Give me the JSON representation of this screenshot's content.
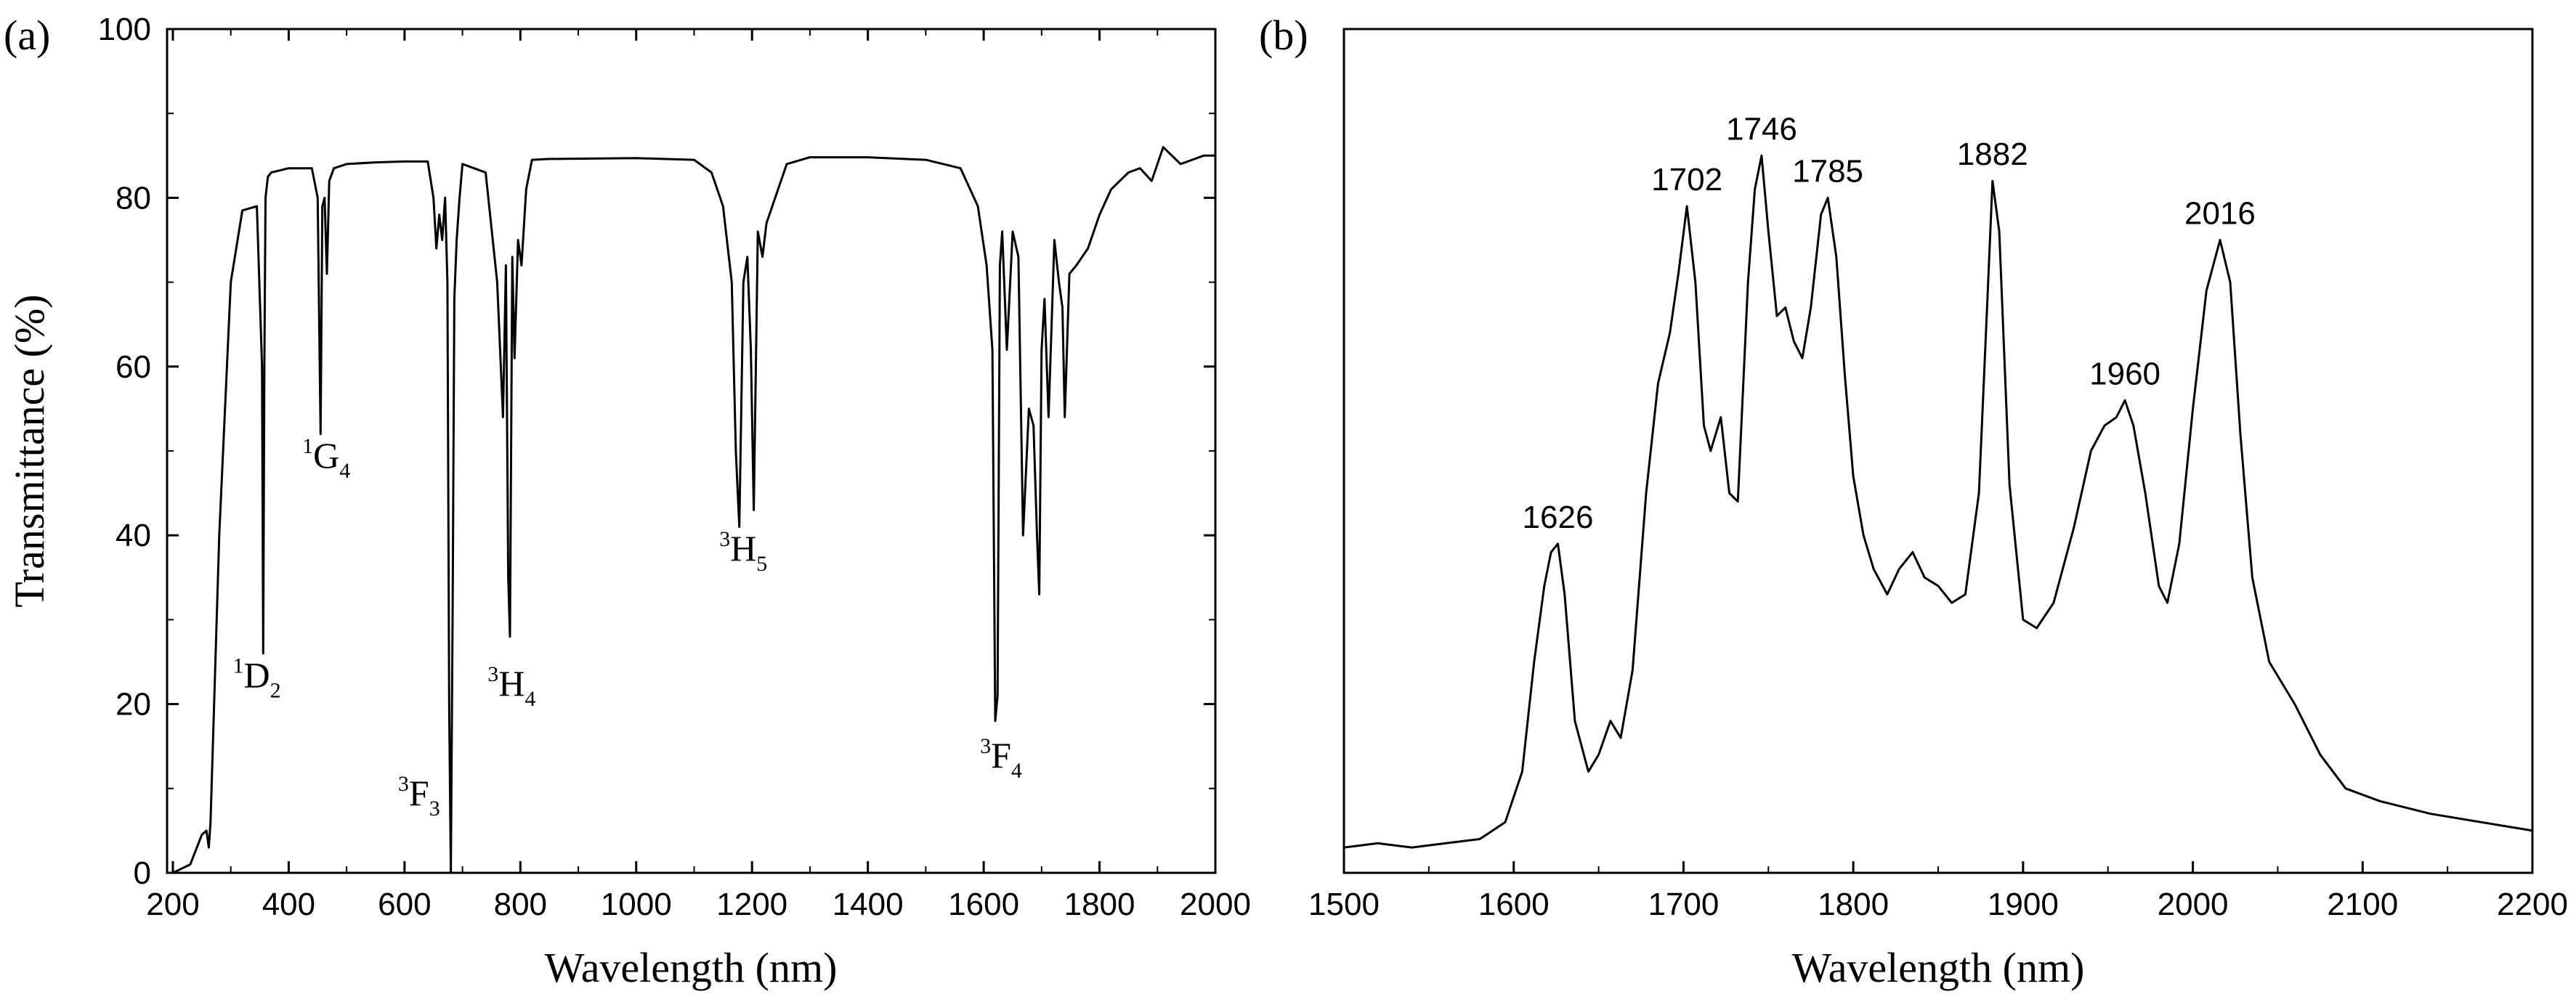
{
  "chart_data": [
    {
      "panel_label": "(a)",
      "type": "line",
      "xlabel": "Wavelength (nm)",
      "ylabel": "Transmittance (%)",
      "xlim": [
        190,
        2000
      ],
      "ylim": [
        0,
        100
      ],
      "x_ticks": [
        200,
        400,
        600,
        800,
        1000,
        1200,
        1400,
        1600,
        1800,
        2000
      ],
      "y_ticks": [
        0,
        20,
        40,
        60,
        80,
        100
      ],
      "grid": false,
      "series": [
        {
          "x": [
            200,
            230,
            250,
            258,
            262,
            265,
            280,
            300,
            320,
            345,
            354,
            356,
            358,
            360,
            364,
            370,
            400,
            440,
            450,
            455,
            458,
            462,
            466,
            470,
            478,
            500,
            550,
            600,
            640,
            650,
            655,
            660,
            665,
            670,
            674,
            677,
            680,
            683,
            686,
            690,
            695,
            700,
            720,
            740,
            760,
            770,
            775,
            779,
            782,
            786,
            790,
            796,
            802,
            810,
            820,
            850,
            1000,
            1100,
            1130,
            1150,
            1165,
            1172,
            1178,
            1185,
            1192,
            1198,
            1203,
            1210,
            1218,
            1225,
            1235,
            1260,
            1300,
            1400,
            1500,
            1560,
            1590,
            1605,
            1615,
            1620,
            1624,
            1628,
            1632,
            1640,
            1650,
            1660,
            1668,
            1678,
            1686,
            1692,
            1696,
            1700,
            1705,
            1712,
            1722,
            1730,
            1736,
            1740,
            1748,
            1760,
            1780,
            1800,
            1820,
            1850,
            1870,
            1890,
            1910,
            1940,
            1960,
            1980,
            2000
          ],
          "y": [
            0,
            1,
            4.5,
            5,
            3,
            6,
            40,
            70,
            78.5,
            79,
            60,
            26,
            60,
            80,
            82.5,
            83,
            83.5,
            83.5,
            80,
            52,
            79,
            80,
            71,
            82,
            83.5,
            84,
            84.2,
            84.3,
            84.3,
            80,
            74,
            78,
            75,
            80,
            70,
            20,
            0,
            30,
            68,
            75,
            80,
            84,
            83.5,
            83,
            70,
            54,
            72,
            35,
            28,
            73,
            61,
            75,
            72,
            81,
            84.5,
            84.6,
            84.7,
            84.5,
            83,
            79,
            70,
            50,
            41,
            70,
            73,
            62,
            43,
            76,
            73,
            77,
            79,
            84,
            84.8,
            84.8,
            84.5,
            83.5,
            79,
            72,
            62,
            18,
            21,
            72,
            76,
            62,
            76,
            73,
            40,
            55,
            53,
            40,
            33,
            62,
            68,
            54,
            75,
            70,
            67,
            54,
            71,
            72,
            74,
            78,
            81,
            83,
            83.5,
            82,
            86,
            84,
            84.5,
            85,
            85
          ]
        }
      ],
      "annotations": [
        {
          "sup": "1",
          "base": "D",
          "sub": "2",
          "x": 345,
          "y": 22
        },
        {
          "sup": "1",
          "base": "G",
          "sub": "4",
          "x": 465,
          "y": 48
        },
        {
          "sup": "3",
          "base": "F",
          "sub": "3",
          "x": 625,
          "y": 8
        },
        {
          "sup": "3",
          "base": "H",
          "sub": "4",
          "x": 785,
          "y": 21
        },
        {
          "sup": "3",
          "base": "H",
          "sub": "5",
          "x": 1185,
          "y": 37
        },
        {
          "sup": "3",
          "base": "F",
          "sub": "4",
          "x": 1630,
          "y": 12.5
        }
      ]
    },
    {
      "panel_label": "(b)",
      "type": "line",
      "xlabel": "Wavelength (nm)",
      "ylabel": "",
      "xlim": [
        1500,
        2200
      ],
      "ylim": [
        0,
        1
      ],
      "x_ticks": [
        1500,
        1600,
        1700,
        1800,
        1900,
        2000,
        2100,
        2200
      ],
      "y_tick_labels": false,
      "grid": false,
      "series": [
        {
          "x": [
            1500,
            1520,
            1540,
            1560,
            1580,
            1595,
            1605,
            1612,
            1618,
            1622,
            1626,
            1630,
            1636,
            1644,
            1650,
            1657,
            1663,
            1670,
            1678,
            1685,
            1692,
            1697,
            1702,
            1707,
            1712,
            1716,
            1722,
            1727,
            1732,
            1738,
            1742,
            1746,
            1750,
            1755,
            1760,
            1765,
            1770,
            1775,
            1781,
            1785,
            1790,
            1795,
            1800,
            1806,
            1812,
            1820,
            1827,
            1835,
            1842,
            1850,
            1858,
            1866,
            1874,
            1879,
            1882,
            1886,
            1892,
            1900,
            1908,
            1918,
            1930,
            1940,
            1948,
            1955,
            1960,
            1965,
            1972,
            1980,
            1985,
            1992,
            2000,
            2008,
            2016,
            2022,
            2028,
            2035,
            2045,
            2060,
            2075,
            2090,
            2110,
            2140,
            2170,
            2200
          ],
          "y": [
            0.03,
            0.035,
            0.03,
            0.035,
            0.04,
            0.06,
            0.12,
            0.25,
            0.34,
            0.38,
            0.39,
            0.33,
            0.18,
            0.12,
            0.14,
            0.18,
            0.16,
            0.24,
            0.45,
            0.58,
            0.64,
            0.71,
            0.79,
            0.7,
            0.53,
            0.5,
            0.54,
            0.45,
            0.44,
            0.7,
            0.81,
            0.85,
            0.76,
            0.66,
            0.67,
            0.63,
            0.61,
            0.67,
            0.78,
            0.8,
            0.73,
            0.59,
            0.47,
            0.4,
            0.36,
            0.33,
            0.36,
            0.38,
            0.35,
            0.34,
            0.32,
            0.33,
            0.45,
            0.68,
            0.82,
            0.76,
            0.46,
            0.3,
            0.29,
            0.32,
            0.41,
            0.5,
            0.53,
            0.54,
            0.56,
            0.53,
            0.45,
            0.34,
            0.32,
            0.39,
            0.55,
            0.69,
            0.75,
            0.7,
            0.52,
            0.35,
            0.25,
            0.2,
            0.14,
            0.1,
            0.085,
            0.07,
            0.06,
            0.05
          ]
        }
      ],
      "peak_labels": [
        {
          "text": "1626",
          "x": 1626,
          "y": 0.39
        },
        {
          "text": "1702",
          "x": 1702,
          "y": 0.79
        },
        {
          "text": "1746",
          "x": 1746,
          "y": 0.85
        },
        {
          "text": "1785",
          "x": 1785,
          "y": 0.8
        },
        {
          "text": "1882",
          "x": 1882,
          "y": 0.82
        },
        {
          "text": "1960",
          "x": 1960,
          "y": 0.56
        },
        {
          "text": "2016",
          "x": 2016,
          "y": 0.75
        }
      ]
    }
  ]
}
